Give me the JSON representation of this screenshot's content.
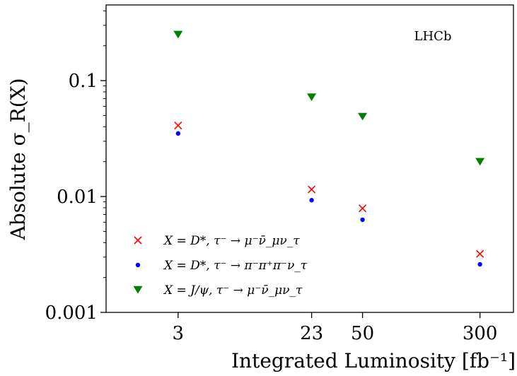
{
  "chart_data": {
    "type": "scatter",
    "title": "",
    "xlabel": "Integrated Luminosity [fb⁻¹]",
    "ylabel": "Absolute σ_R(X)",
    "xscale": "log",
    "yscale": "log",
    "xlim": [
      1.0,
      500
    ],
    "ylim": [
      0.001,
      0.45
    ],
    "xticks": [
      "3",
      "23",
      "50",
      "300"
    ],
    "yticks": [
      "0.001",
      "0.01",
      "0.1"
    ],
    "grid": false,
    "legend_position": "bottom-left",
    "annotation": "LHCb",
    "series": [
      {
        "name": "X = D*, τ⁻ → μ⁻ν̄_μν_τ",
        "marker": "x",
        "color": "#ff0000",
        "x": [
          3,
          23,
          50,
          300
        ],
        "y": [
          0.041,
          0.0115,
          0.0079,
          0.0032
        ]
      },
      {
        "name": "X = D*, τ⁻ → π⁻π⁺π⁻ν_τ",
        "marker": "circle",
        "color": "#0000ff",
        "x": [
          3,
          23,
          50,
          300
        ],
        "y": [
          0.035,
          0.0093,
          0.0063,
          0.0026
        ]
      },
      {
        "name": "X = J/ψ, τ⁻ → μ⁻ν̄_μν_τ",
        "marker": "triangle-down",
        "color": "#008000",
        "x": [
          3,
          23,
          50,
          300
        ],
        "y": [
          0.25,
          0.072,
          0.049,
          0.02
        ]
      }
    ]
  }
}
